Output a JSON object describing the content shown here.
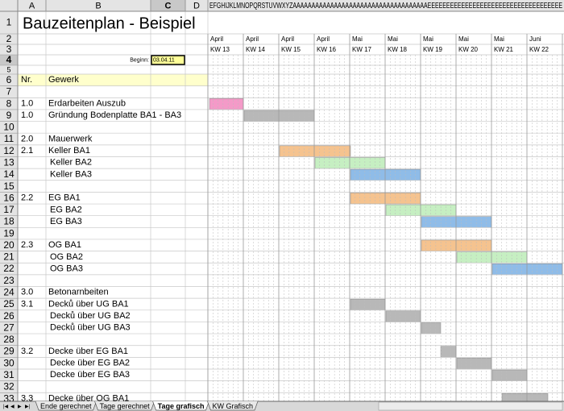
{
  "sheet": {
    "title": "Bauzeitenplan - Beispiel",
    "columns": [
      "A",
      "B",
      "C",
      "D"
    ],
    "gantt_columns": "EFGHIJKLMNOPQRSTUVWXYZAAAAAAAAAAAAAAAAAAAAAAAAAAAAAAAAAAAAEEEEEEEEEEEEEEEEEEEEEEEEEEEEEEEEEEEE",
    "row_numbers": [
      1,
      2,
      3,
      4,
      5,
      6,
      7,
      8,
      9,
      10,
      11,
      12,
      13,
      14,
      15,
      16,
      17,
      18,
      19,
      20,
      21,
      22,
      23,
      24,
      25,
      26,
      27,
      28,
      29,
      30,
      31,
      32,
      33
    ],
    "start_label": "Beginn:",
    "start_date": "03.04.11",
    "header": {
      "nr": "Nr.",
      "gewerk": "Gewerk"
    },
    "months": [
      "April",
      "April",
      "April",
      "April",
      "Mai",
      "Mai",
      "Mai",
      "Mai",
      "Mai",
      "Juni"
    ],
    "weeks": [
      "KW 13",
      "KW 14",
      "KW 15",
      "KW 16",
      "KW 17",
      "KW 18",
      "KW 19",
      "KW 20",
      "KW 21",
      "KW 22"
    ],
    "tasks": [
      {
        "nr": "1.0",
        "gewerk": "Erdarbeiten Auszub"
      },
      {
        "nr": "1.0",
        "gewerk": "Gründung Bodenplatte BA1 - BA3"
      },
      null,
      {
        "nr": "2.0",
        "gewerk": "Mauerwerk"
      },
      {
        "nr": "2.1",
        "gewerk": "Keller BA1"
      },
      {
        "gewerk": "Keller BA2"
      },
      {
        "gewerk": "Keller BA3"
      },
      null,
      {
        "nr": "2.2",
        "gewerk": "EG BA1"
      },
      {
        "gewerk": "EG BA2"
      },
      {
        "gewerk": "EG BA3"
      },
      null,
      {
        "nr": "2.3",
        "gewerk": "OG BA1"
      },
      {
        "gewerk": "OG BA2"
      },
      {
        "gewerk": "OG BA3"
      },
      null,
      {
        "nr": "3.0",
        "gewerk": "Betonarnbeiten"
      },
      {
        "nr": "3.1",
        "gewerk": "Decků über UG BA1"
      },
      {
        "gewerk": "Decků über UG BA2"
      },
      {
        "gewerk": "Decků über UG BA3"
      },
      null,
      {
        "nr": "3.2",
        "gewerk": "Decke über EG BA1"
      },
      {
        "gewerk": "Decke über EG BA2"
      },
      {
        "gewerk": "Decke über EG BA3"
      },
      null,
      {
        "nr": "3.3",
        "gewerk": "Decke über OG BA1"
      }
    ],
    "tabs": [
      "Ende gerechnet",
      "Tage gerechnet",
      "Tage grafisch",
      "KW Grafisch"
    ]
  }
}
